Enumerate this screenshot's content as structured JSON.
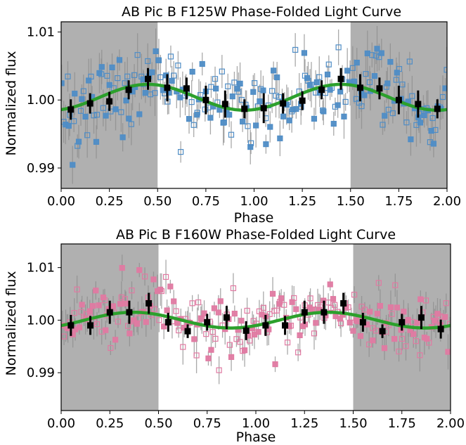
{
  "chart_data": [
    {
      "type": "scatter",
      "title": "AB Pic B F125W Phase-Folded Light Curve",
      "xlabel": "Phase",
      "ylabel": "Normalized flux",
      "xlim": [
        0.0,
        2.0
      ],
      "ylim": [
        0.987,
        1.0115
      ],
      "xticks": [
        "0.00",
        "0.25",
        "0.50",
        "0.75",
        "1.00",
        "1.25",
        "1.50",
        "1.75",
        "2.00"
      ],
      "yticks": [
        "0.99",
        "1.00",
        "1.01"
      ],
      "grid": false,
      "legend": "none",
      "shaded_regions": [
        [
          0.0,
          0.5
        ],
        [
          1.5,
          2.0
        ]
      ],
      "colors": {
        "points": "#4f8dc6",
        "model": "#2ca02c",
        "binned": "#000000",
        "errorbars": "#8c8c8c",
        "shade": "#b0b0b0"
      },
      "model_curve": {
        "function": "sinusoid",
        "mean": 1.0004,
        "amplitude": 0.0019,
        "peak_phase": 0.45,
        "period": 1.0
      },
      "binned_points": {
        "x": [
          0.05,
          0.15,
          0.25,
          0.35,
          0.45,
          0.55,
          0.65,
          0.75,
          0.85,
          0.95,
          1.05,
          1.15,
          1.25,
          1.35,
          1.45,
          1.55,
          1.65,
          1.75,
          1.85,
          1.95
        ],
        "y": [
          0.9986,
          0.9995,
          0.9998,
          1.0015,
          1.0031,
          1.0018,
          1.0017,
          1.0,
          0.9994,
          0.9987,
          0.9988,
          0.9995,
          0.9999,
          1.0015,
          1.0031,
          1.0018,
          1.0017,
          1.0,
          0.9994,
          0.9987
        ],
        "yerr": [
          0.0015,
          0.0015,
          0.0014,
          0.0014,
          0.0016,
          0.002,
          0.0016,
          0.0021,
          0.002,
          0.0014,
          0.0022,
          0.0015,
          0.0014,
          0.0014,
          0.0016,
          0.002,
          0.0016,
          0.0021,
          0.002,
          0.0014
        ]
      }
    },
    {
      "type": "scatter",
      "title": "AB Pic B F160W Phase-Folded Light Curve",
      "xlabel": "Phase",
      "ylabel": "Normalized flux",
      "xlim": [
        0.0,
        2.0
      ],
      "ylim": [
        0.9828,
        1.0145
      ],
      "xticks": [
        "0.00",
        "0.25",
        "0.50",
        "0.75",
        "1.00",
        "1.25",
        "1.50",
        "1.75",
        "2.00"
      ],
      "yticks": [
        "0.99",
        "1.00",
        "1.01"
      ],
      "grid": false,
      "legend": "none",
      "shaded_regions": [
        [
          0.0,
          0.5
        ],
        [
          1.5,
          2.0
        ]
      ],
      "colors": {
        "points": "#e07aa2",
        "model": "#2ca02c",
        "binned": "#000000",
        "errorbars": "#8c8c8c",
        "shade": "#b0b0b0"
      },
      "model_curve": {
        "function": "sinusoid",
        "mean": 1.0,
        "amplitude": 0.0015,
        "peak_phase": 0.37,
        "period": 1.0
      },
      "binned_points": {
        "x": [
          0.05,
          0.15,
          0.25,
          0.35,
          0.45,
          0.55,
          0.65,
          0.75,
          0.85,
          0.95,
          1.05,
          1.15,
          1.25,
          1.35,
          1.45,
          1.55,
          1.65,
          1.75,
          1.85,
          1.95
        ],
        "y": [
          0.999,
          0.999,
          1.0015,
          1.0015,
          1.0032,
          0.9996,
          0.9979,
          0.9996,
          1.0005,
          0.998,
          0.999,
          0.999,
          1.0015,
          1.0015,
          1.0032,
          0.9996,
          0.9979,
          0.9996,
          1.0005,
          0.9983
        ],
        "yerr": [
          0.002,
          0.0018,
          0.0022,
          0.0022,
          0.002,
          0.0018,
          0.0013,
          0.0016,
          0.0022,
          0.0018,
          0.002,
          0.0018,
          0.0022,
          0.0022,
          0.002,
          0.0018,
          0.0013,
          0.0016,
          0.0022,
          0.0018
        ]
      }
    }
  ]
}
